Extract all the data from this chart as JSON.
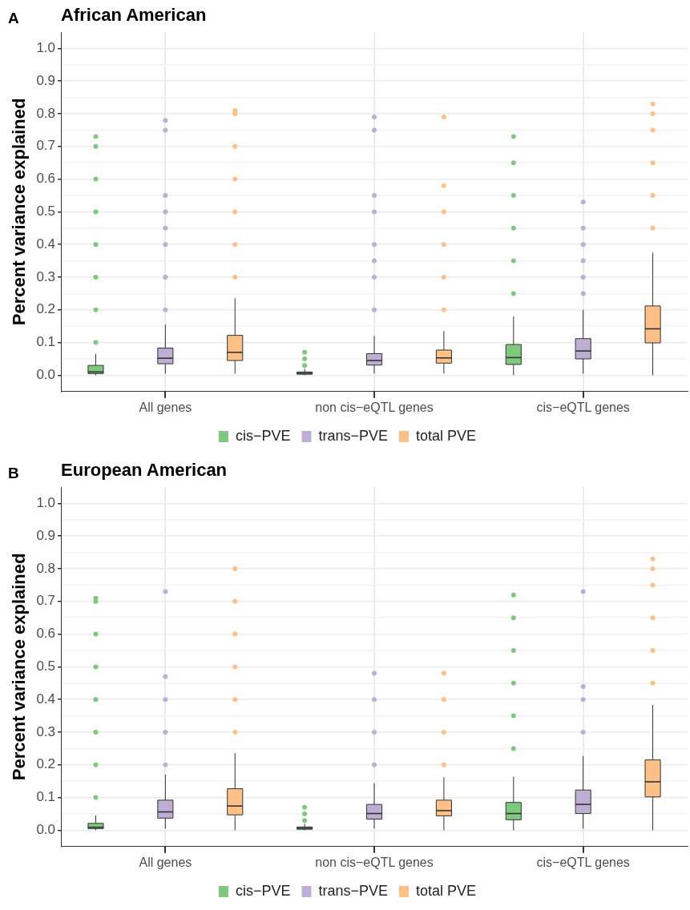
{
  "chart_data": [
    {
      "type": "box",
      "title": "African American",
      "ylabel": "Percent variance explained",
      "annotations": [
        "A"
      ],
      "categories": [
        "All genes",
        "non cis−eQTL genes",
        "cis−eQTL genes"
      ],
      "ylim": [
        -0.05,
        1.05
      ],
      "yticks": [
        {
          "value": 0,
          "label": "0.0"
        },
        {
          "value": 0.05,
          "label": null
        },
        0.1,
        {
          "value": 0.15,
          "label": null
        },
        0.2,
        {
          "value": 0.25,
          "label": null
        },
        0.3,
        {
          "value": 0.35,
          "label": null
        },
        0.4,
        {
          "value": 0.45,
          "label": null
        },
        0.5,
        {
          "value": 0.55,
          "label": null
        },
        0.6,
        {
          "value": 0.65,
          "label": null
        },
        0.7,
        {
          "value": 0.75,
          "label": null
        },
        0.8,
        {
          "value": 0.85,
          "label": null
        },
        0.9,
        {
          "value": 0.95,
          "label": null
        },
        {
          "value": 1,
          "label": "1.0"
        }
      ],
      "grid": true,
      "legend": "bottom",
      "series": [
        {
          "name": "cis−PVE",
          "color": "#7fc97f",
          "boxes": [
            {
              "low": 0,
              "q1": 0.005,
              "median": 0.01,
              "q3": 0.03,
              "high": 0.065,
              "outliers": [
                0.1,
                0.2,
                0.3,
                0.4,
                0.5,
                0.6,
                0.7,
                0.73
              ]
            },
            {
              "low": 0,
              "q1": 0.003,
              "median": 0.006,
              "q3": 0.01,
              "high": 0.02,
              "outliers": [
                0.03,
                0.05,
                0.07
              ]
            },
            {
              "low": 0,
              "q1": 0.033,
              "median": 0.054,
              "q3": 0.094,
              "high": 0.18,
              "outliers": [
                0.25,
                0.35,
                0.45,
                0.55,
                0.65,
                0.73
              ]
            }
          ]
        },
        {
          "name": "trans−PVE",
          "color": "#beaed4",
          "boxes": [
            {
              "low": 0.005,
              "q1": 0.035,
              "median": 0.052,
              "q3": 0.083,
              "high": 0.155,
              "outliers": [
                0.2,
                0.3,
                0.4,
                0.45,
                0.5,
                0.55,
                0.75,
                0.78
              ]
            },
            {
              "low": 0.005,
              "q1": 0.031,
              "median": 0.045,
              "q3": 0.066,
              "high": 0.12,
              "outliers": [
                0.2,
                0.3,
                0.35,
                0.4,
                0.5,
                0.55,
                0.75,
                0.79
              ]
            },
            {
              "low": 0.005,
              "q1": 0.05,
              "median": 0.074,
              "q3": 0.112,
              "high": 0.2,
              "outliers": [
                0.25,
                0.3,
                0.35,
                0.4,
                0.45,
                0.53
              ]
            }
          ]
        },
        {
          "name": "total PVE",
          "color": "#fdc086",
          "boxes": [
            {
              "low": 0.005,
              "q1": 0.045,
              "median": 0.07,
              "q3": 0.122,
              "high": 0.235,
              "outliers": [
                0.3,
                0.4,
                0.5,
                0.6,
                0.7,
                0.8,
                0.81
              ]
            },
            {
              "low": 0.005,
              "q1": 0.037,
              "median": 0.053,
              "q3": 0.077,
              "high": 0.135,
              "outliers": [
                0.2,
                0.3,
                0.4,
                0.5,
                0.58,
                0.79
              ]
            },
            {
              "low": 0,
              "q1": 0.099,
              "median": 0.142,
              "q3": 0.212,
              "high": 0.375,
              "outliers": [
                0.45,
                0.55,
                0.65,
                0.75,
                0.8,
                0.83
              ]
            }
          ]
        }
      ]
    },
    {
      "type": "box",
      "title": "European American",
      "ylabel": "Percent variance explained",
      "annotations": [
        "B"
      ],
      "categories": [
        "All genes",
        "non cis−eQTL genes",
        "cis−eQTL genes"
      ],
      "ylim": [
        -0.05,
        1.05
      ],
      "yticks": [
        {
          "value": 0,
          "label": "0.0"
        },
        {
          "value": 0.05,
          "label": null
        },
        0.1,
        {
          "value": 0.15,
          "label": null
        },
        0.2,
        {
          "value": 0.25,
          "label": null
        },
        0.3,
        {
          "value": 0.35,
          "label": null
        },
        0.4,
        {
          "value": 0.45,
          "label": null
        },
        0.5,
        {
          "value": 0.55,
          "label": null
        },
        0.6,
        {
          "value": 0.65,
          "label": null
        },
        0.7,
        {
          "value": 0.75,
          "label": null
        },
        0.8,
        {
          "value": 0.85,
          "label": null
        },
        0.9,
        {
          "value": 0.95,
          "label": null
        },
        {
          "value": 1,
          "label": "1.0"
        }
      ],
      "grid": true,
      "legend": "bottom",
      "series": [
        {
          "name": "cis−PVE",
          "color": "#7fc97f",
          "boxes": [
            {
              "low": 0,
              "q1": 0.005,
              "median": 0.009,
              "q3": 0.021,
              "high": 0.045,
              "outliers": [
                0.1,
                0.2,
                0.3,
                0.4,
                0.5,
                0.6,
                0.7,
                0.71
              ]
            },
            {
              "low": 0,
              "q1": 0.003,
              "median": 0.006,
              "q3": 0.01,
              "high": 0.02,
              "outliers": [
                0.03,
                0.05,
                0.07
              ]
            },
            {
              "low": 0,
              "q1": 0.032,
              "median": 0.051,
              "q3": 0.085,
              "high": 0.164,
              "outliers": [
                0.25,
                0.35,
                0.45,
                0.55,
                0.65,
                0.72
              ]
            }
          ]
        },
        {
          "name": "trans−PVE",
          "color": "#beaed4",
          "boxes": [
            {
              "low": 0.005,
              "q1": 0.037,
              "median": 0.056,
              "q3": 0.092,
              "high": 0.17,
              "outliers": [
                0.2,
                0.3,
                0.4,
                0.47,
                0.73
              ]
            },
            {
              "low": 0.005,
              "q1": 0.034,
              "median": 0.051,
              "q3": 0.079,
              "high": 0.144,
              "outliers": [
                0.2,
                0.3,
                0.4,
                0.48
              ]
            },
            {
              "low": 0.005,
              "q1": 0.051,
              "median": 0.079,
              "q3": 0.123,
              "high": 0.227,
              "outliers": [
                0.3,
                0.4,
                0.44,
                0.73
              ]
            }
          ]
        },
        {
          "name": "total PVE",
          "color": "#fdc086",
          "boxes": [
            {
              "low": 0,
              "q1": 0.047,
              "median": 0.074,
              "q3": 0.127,
              "high": 0.236,
              "outliers": [
                0.3,
                0.4,
                0.5,
                0.6,
                0.7,
                0.8
              ]
            },
            {
              "low": 0,
              "q1": 0.044,
              "median": 0.06,
              "q3": 0.092,
              "high": 0.162,
              "outliers": [
                0.2,
                0.3,
                0.4,
                0.48
              ]
            },
            {
              "low": 0,
              "q1": 0.102,
              "median": 0.148,
              "q3": 0.215,
              "high": 0.384,
              "outliers": [
                0.45,
                0.55,
                0.65,
                0.75,
                0.8,
                0.83
              ]
            }
          ]
        }
      ]
    }
  ]
}
